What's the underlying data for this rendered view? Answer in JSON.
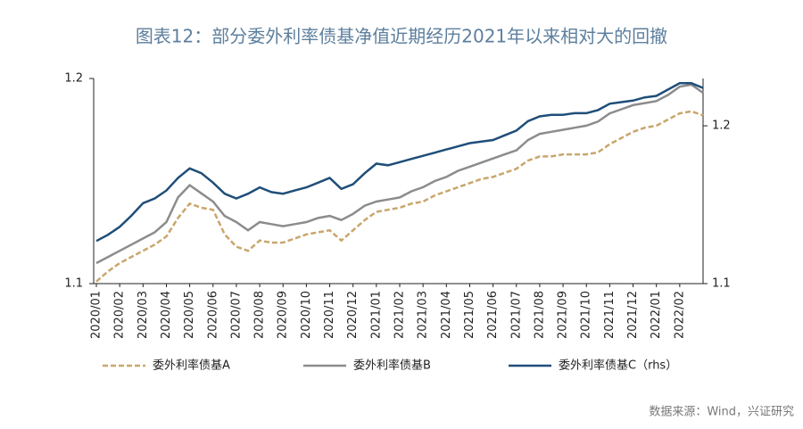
{
  "chart_data": {
    "type": "line",
    "title": "图表12：部分委外利率债基净值近期经历2021年以来相对大的回撤",
    "source": "数据来源：Wind，兴证研究",
    "categories": [
      "2020/01",
      null,
      "2020/02",
      null,
      "2020/03",
      null,
      "2020/04",
      null,
      "2020/05",
      null,
      "2020/06",
      null,
      "2020/07",
      null,
      "2020/08",
      null,
      "2020/09",
      null,
      "2020/10",
      null,
      "2020/11",
      null,
      "2020/12",
      null,
      "2021/01",
      null,
      "2021/02",
      null,
      "2021/03",
      null,
      "2021/04",
      null,
      "2021/05",
      null,
      "2021/06",
      null,
      "2021/07",
      null,
      "2021/08",
      null,
      "2021/09",
      null,
      "2021/10",
      null,
      "2021/11",
      null,
      "2021/12",
      null,
      "2022/01",
      null,
      "2022/02",
      null,
      null
    ],
    "series": [
      {
        "name": "委外利率债基A",
        "color": "#c9a66b",
        "dash": true,
        "axis": "y",
        "values": [
          1.101,
          1.106,
          1.11,
          1.113,
          1.116,
          1.119,
          1.123,
          1.132,
          1.139,
          1.137,
          1.136,
          1.124,
          1.118,
          1.116,
          1.121,
          1.12,
          1.12,
          1.122,
          1.124,
          1.125,
          1.126,
          1.121,
          1.126,
          1.131,
          1.135,
          1.136,
          1.137,
          1.139,
          1.14,
          1.143,
          1.145,
          1.147,
          1.149,
          1.151,
          1.152,
          1.154,
          1.156,
          1.16,
          1.162,
          1.162,
          1.163,
          1.163,
          1.163,
          1.164,
          1.168,
          1.171,
          1.174,
          1.176,
          1.177,
          1.18,
          1.183,
          1.184,
          1.182
        ]
      },
      {
        "name": "委外利率债基B",
        "color": "#8c8c8c",
        "dash": false,
        "axis": "y",
        "values": [
          1.11,
          1.113,
          1.116,
          1.119,
          1.122,
          1.125,
          1.13,
          1.142,
          1.148,
          1.144,
          1.14,
          1.133,
          1.13,
          1.126,
          1.13,
          1.129,
          1.128,
          1.129,
          1.13,
          1.132,
          1.133,
          1.131,
          1.134,
          1.138,
          1.14,
          1.141,
          1.142,
          1.145,
          1.147,
          1.15,
          1.152,
          1.155,
          1.157,
          1.159,
          1.161,
          1.163,
          1.165,
          1.17,
          1.173,
          1.174,
          1.175,
          1.176,
          1.177,
          1.179,
          1.183,
          1.185,
          1.187,
          1.188,
          1.189,
          1.192,
          1.196,
          1.197,
          1.193
        ]
      },
      {
        "name": "委外利率债基C（rhs）",
        "color": "#1f4e79",
        "dash": false,
        "axis": "y2",
        "values": [
          1.127,
          1.131,
          1.136,
          1.143,
          1.151,
          1.154,
          1.159,
          1.167,
          1.173,
          1.17,
          1.164,
          1.157,
          1.154,
          1.157,
          1.161,
          1.158,
          1.157,
          1.159,
          1.161,
          1.164,
          1.167,
          1.16,
          1.163,
          1.17,
          1.176,
          1.175,
          1.177,
          1.179,
          1.181,
          1.183,
          1.185,
          1.187,
          1.189,
          1.19,
          1.191,
          1.194,
          1.197,
          1.203,
          1.206,
          1.207,
          1.207,
          1.208,
          1.208,
          1.21,
          1.214,
          1.215,
          1.216,
          1.218,
          1.219,
          1.223,
          1.227,
          1.227,
          1.224
        ]
      }
    ],
    "ylim": [
      1.1,
      1.2
    ],
    "yticks": [
      1.1,
      1.2
    ],
    "y2lim": [
      1.1,
      1.23
    ],
    "y2ticks": [
      1.1,
      1.2
    ],
    "legend": "bottom"
  }
}
